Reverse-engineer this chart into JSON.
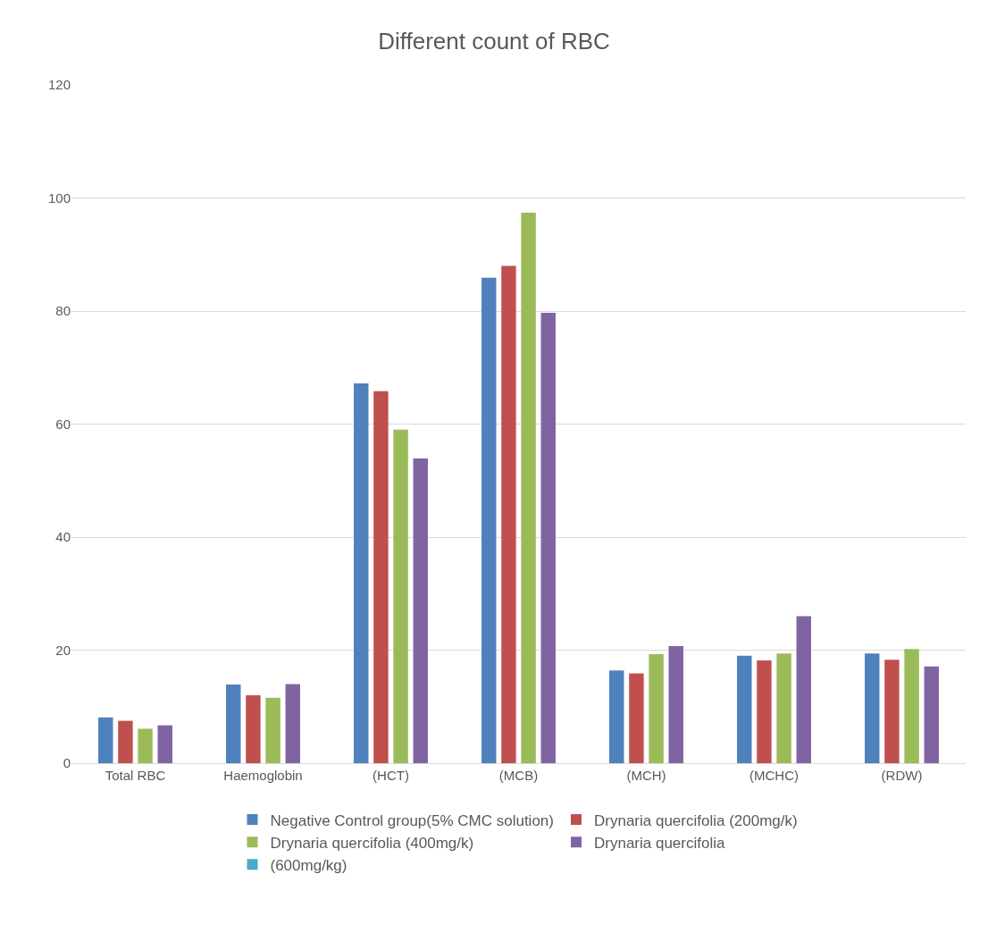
{
  "chart_data": {
    "type": "bar",
    "title": "Different count of RBC",
    "categories": [
      "Total RBC",
      "Haemoglobin",
      "(HCT)",
      "(MCB)",
      "(MCH)",
      "(MCHC)",
      "(RDW)"
    ],
    "series": [
      {
        "name": "Negative Control group(5% CMC solution)",
        "color": "#4f81bd",
        "values": [
          8.1,
          13.9,
          67.2,
          85.9,
          16.4,
          19.0,
          19.4
        ]
      },
      {
        "name": "Drynaria quercifolia (200mg/k)",
        "color": "#c0504d",
        "values": [
          7.5,
          12.0,
          65.8,
          88.0,
          15.9,
          18.2,
          18.3
        ]
      },
      {
        "name": "Drynaria quercifolia (400mg/k)",
        "color": "#9bbb59",
        "values": [
          6.1,
          11.6,
          59.0,
          97.4,
          19.3,
          19.4,
          20.2
        ]
      },
      {
        "name": "Drynaria quercifolia",
        "color": "#8064a2",
        "values": [
          6.7,
          14.0,
          53.9,
          79.7,
          20.7,
          26.0,
          17.1
        ]
      },
      {
        "name": "(600mg/kg)",
        "color": "#4bacc6",
        "values": [
          null,
          null,
          null,
          null,
          null,
          null,
          null
        ]
      }
    ],
    "ylim": [
      0,
      120
    ],
    "yticks": [
      0,
      20,
      40,
      60,
      80,
      100,
      120
    ],
    "grid": "y",
    "legend": "bottom"
  }
}
